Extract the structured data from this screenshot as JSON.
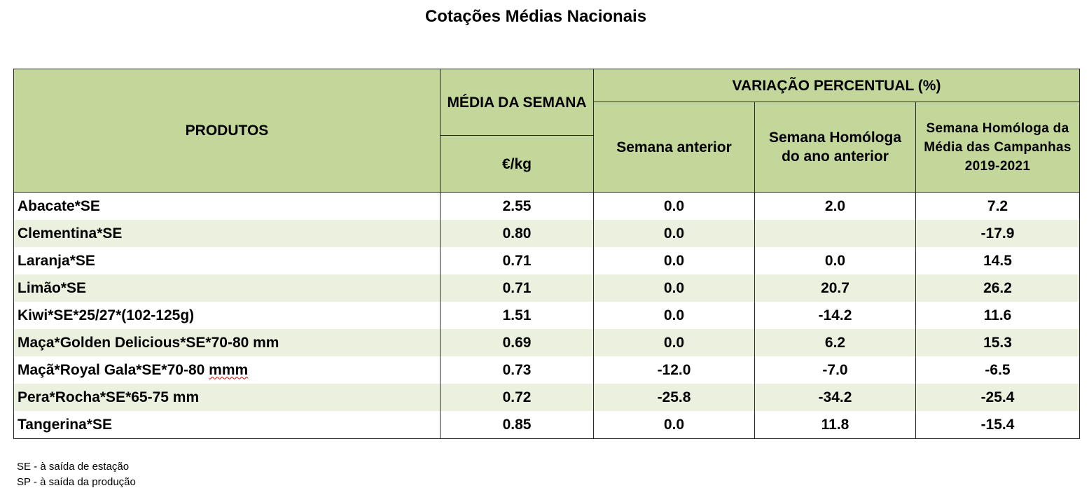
{
  "title": "Cotações Médias Nacionais",
  "headers": {
    "produtos": "PRODUTOS",
    "media_semana": "MÉDIA DA SEMANA",
    "unit": "€/kg",
    "variacao": "VARIAÇÃO PERCENTUAL (%)",
    "semana_anterior": "Semana anterior",
    "homologa_ano": "Semana Homóloga do ano anterior",
    "homologa_campanhas": "Semana Homóloga da Média das Campanhas 2019-2021"
  },
  "rows": [
    {
      "produto": "Abacate*SE",
      "media": "2.55",
      "sem_ant": "0.0",
      "hom_ano": "2.0",
      "hom_camp": "7.2"
    },
    {
      "produto": "Clementina*SE",
      "media": "0.80",
      "sem_ant": "0.0",
      "hom_ano": "",
      "hom_camp": "-17.9"
    },
    {
      "produto": "Laranja*SE",
      "media": "0.71",
      "sem_ant": "0.0",
      "hom_ano": "0.0",
      "hom_camp": "14.5"
    },
    {
      "produto": "Limão*SE",
      "media": "0.71",
      "sem_ant": "0.0",
      "hom_ano": "20.7",
      "hom_camp": "26.2"
    },
    {
      "produto": "Kiwi*SE*25/27*(102-125g)",
      "media": "1.51",
      "sem_ant": "0.0",
      "hom_ano": "-14.2",
      "hom_camp": "11.6"
    },
    {
      "produto": "Maça*Golden Delicious*SE*70-80 mm",
      "media": "0.69",
      "sem_ant": "0.0",
      "hom_ano": "6.2",
      "hom_camp": "15.3"
    },
    {
      "produto_prefix": "Maçã*Royal Gala*SE*70-80 ",
      "produto_flag": "mmm",
      "media": "0.73",
      "sem_ant": "-12.0",
      "hom_ano": "-7.0",
      "hom_camp": "-6.5"
    },
    {
      "produto": "Pera*Rocha*SE*65-75 mm",
      "media": "0.72",
      "sem_ant": "-25.8",
      "hom_ano": "-34.2",
      "hom_camp": "-25.4"
    },
    {
      "produto": "Tangerina*SE",
      "media": "0.85",
      "sem_ant": "0.0",
      "hom_ano": "11.8",
      "hom_camp": "-15.4"
    }
  ],
  "notes": [
    "SE - à saída de estação",
    "SP - à saída da produção"
  ],
  "colors": {
    "header_bg": "#c4d79b",
    "band_bg": "#ebf1de",
    "spell_underline": "#d00000"
  }
}
